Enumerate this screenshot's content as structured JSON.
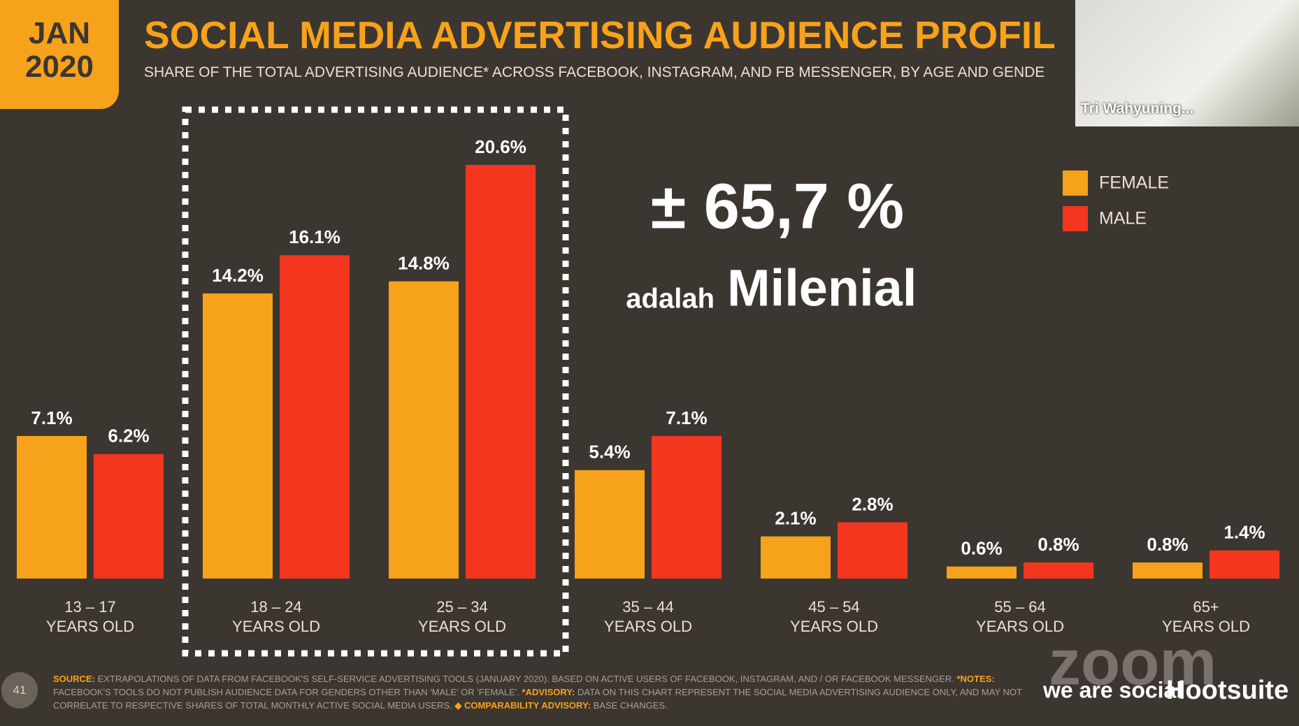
{
  "badge": {
    "month": "JAN",
    "year": "2020"
  },
  "chart_data": {
    "type": "bar",
    "title": "SOCIAL MEDIA ADVERTISING AUDIENCE PROFIL",
    "subtitle": "SHARE OF THE TOTAL ADVERTISING AUDIENCE* ACROSS FACEBOOK, INSTAGRAM, AND FB MESSENGER, BY AGE AND GENDE",
    "categories": [
      [
        "13 – 17",
        "YEARS OLD"
      ],
      [
        "18 – 24",
        "YEARS OLD"
      ],
      [
        "25 – 34",
        "YEARS OLD"
      ],
      [
        "35 – 44",
        "YEARS OLD"
      ],
      [
        "45 – 54",
        "YEARS OLD"
      ],
      [
        "55 – 64",
        "YEARS OLD"
      ],
      [
        "65+",
        "YEARS OLD"
      ]
    ],
    "series": [
      {
        "name": "FEMALE",
        "color": "#f7a21b",
        "values": [
          7.1,
          14.2,
          14.8,
          5.4,
          2.1,
          0.6,
          0.8
        ],
        "value_labels": [
          "7.1%",
          "14.2%",
          "14.8%",
          "5.4%",
          "2.1%",
          "0.6%",
          "0.8%"
        ]
      },
      {
        "name": "MALE",
        "color": "#f4361f",
        "values": [
          6.2,
          16.1,
          20.6,
          7.1,
          2.8,
          0.8,
          1.4
        ],
        "value_labels": [
          "6.2%",
          "16.1%",
          "20.6%",
          "7.1%",
          "2.8%",
          "0.8%",
          "1.4%"
        ]
      }
    ],
    "legend": "top-right",
    "annotations": [
      "± 65,7 %",
      "adalah",
      "Milenial"
    ]
  },
  "footer": {
    "slide_number": "41",
    "source_label": "SOURCE:",
    "source": "EXTRAPOLATIONS OF DATA FROM FACEBOOK'S SELF-SERVICE ADVERTISING TOOLS (JANUARY 2020). BASED ON ACTIVE USERS OF FACEBOOK, INSTAGRAM, AND / OR FACEBOOK MESSENGER.",
    "notes_label": "*NOTES:",
    "notes": "FACEBOOK'S TOOLS DO NOT PUBLISH AUDIENCE DATA FOR GENDERS OTHER THAN 'MALE' OR 'FEMALE'.",
    "advisory_label": "*ADVISORY:",
    "advisory": "DATA ON THIS CHART REPRESENT THE SOCIAL MEDIA ADVERTISING AUDIENCE ONLY, AND MAY NOT CORRELATE TO RESPECTIVE SHARES OF TOTAL MONTHLY ACTIVE SOCIAL MEDIA USERS.",
    "comparability_label": "◆ COMPARABILITY ADVISORY:",
    "comparability": "BASE CHANGES."
  },
  "branding": {
    "we_are_social": "we are social",
    "hootsuite": "Hootsuite",
    "zoom": "zoom"
  },
  "video": {
    "participant": "Tri Wahyuning..."
  }
}
